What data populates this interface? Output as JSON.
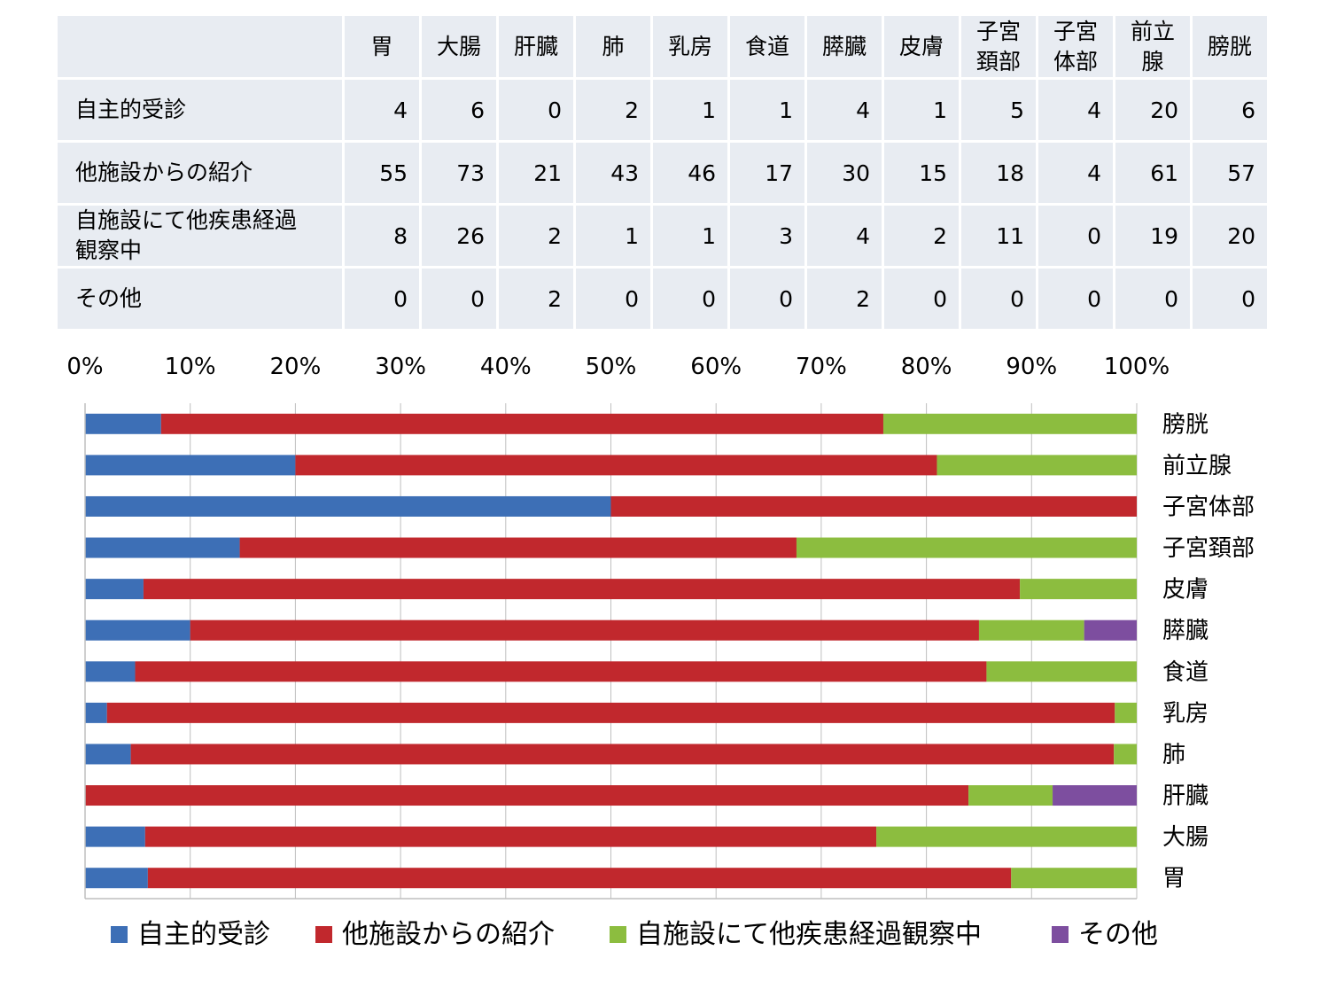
{
  "table": {
    "columns": [
      "胃",
      "大腸",
      "肝臓",
      "肺",
      "乳房",
      "食道",
      "膵臓",
      "皮膚",
      "子宮\n頚部",
      "子宮\n体部",
      "前立\n腺",
      "膀胱"
    ],
    "rows": [
      {
        "label": "自主的受診",
        "values": [
          "4",
          "6",
          "0",
          "2",
          "1",
          "1",
          "4",
          "1",
          "5",
          "4",
          "20",
          "6"
        ]
      },
      {
        "label": "他施設からの紹介",
        "values": [
          "55",
          "73",
          "21",
          "43",
          "46",
          "17",
          "30",
          "15",
          "18",
          "4",
          "61",
          "57"
        ]
      },
      {
        "label": "自施設にて他疾患経過\n観察中",
        "values": [
          "8",
          "26",
          "2",
          "1",
          "1",
          "3",
          "4",
          "2",
          "11",
          "0",
          "19",
          "20"
        ]
      },
      {
        "label": "その他",
        "values": [
          "0",
          "0",
          "2",
          "0",
          "0",
          "0",
          "2",
          "0",
          "0",
          "0",
          "0",
          "0"
        ]
      }
    ]
  },
  "chart_data": {
    "type": "bar",
    "orientation": "horizontal",
    "stacked": "percent",
    "categories": [
      "胃",
      "大腸",
      "肝臓",
      "肺",
      "乳房",
      "食道",
      "膵臓",
      "皮膚",
      "子宮頚部",
      "子宮体部",
      "前立腺",
      "膀胱"
    ],
    "series": [
      {
        "name": "自主的受診",
        "color": "#3d6fb6",
        "values": [
          4,
          6,
          0,
          2,
          1,
          1,
          4,
          1,
          5,
          4,
          20,
          6
        ]
      },
      {
        "name": "他施設からの紹介",
        "color": "#c1282d",
        "values": [
          55,
          73,
          21,
          43,
          46,
          17,
          30,
          15,
          18,
          4,
          61,
          57
        ]
      },
      {
        "name": "自施設にて他疾患経過観察中",
        "color": "#8cbd3f",
        "values": [
          8,
          26,
          2,
          1,
          1,
          3,
          4,
          2,
          11,
          0,
          19,
          20
        ]
      },
      {
        "name": "その他",
        "color": "#7d4e9f",
        "values": [
          0,
          0,
          2,
          0,
          0,
          0,
          2,
          0,
          0,
          0,
          0,
          0
        ]
      }
    ],
    "x_ticks": [
      "0%",
      "10%",
      "20%",
      "30%",
      "40%",
      "50%",
      "60%",
      "70%",
      "80%",
      "90%",
      "100%"
    ],
    "xlim": [
      0,
      100
    ],
    "grid": true,
    "legend_position": "bottom",
    "gridline_color": "#bfbfbf",
    "axis_color": "#bfbfbf"
  }
}
